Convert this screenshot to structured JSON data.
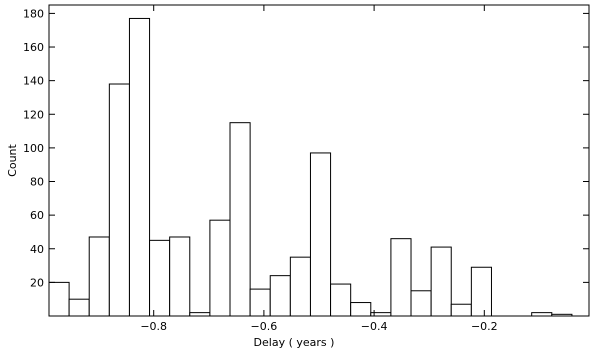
{
  "chart_data": {
    "type": "bar",
    "title": "",
    "xlabel": "Delay  (  years  )",
    "ylabel": "Count",
    "xlim": [
      -0.99,
      -0.01
    ],
    "ylim": [
      0,
      185
    ],
    "bin_width": 0.0365,
    "bins": [
      {
        "x0": -0.99,
        "value": 20
      },
      {
        "x0": -0.9535,
        "value": 10
      },
      {
        "x0": -0.917,
        "value": 47
      },
      {
        "x0": -0.8805,
        "value": 138
      },
      {
        "x0": -0.844,
        "value": 177
      },
      {
        "x0": -0.8075,
        "value": 45
      },
      {
        "x0": -0.771,
        "value": 47
      },
      {
        "x0": -0.7345,
        "value": 2
      },
      {
        "x0": -0.698,
        "value": 57
      },
      {
        "x0": -0.6615,
        "value": 115
      },
      {
        "x0": -0.625,
        "value": 16
      },
      {
        "x0": -0.5885,
        "value": 24
      },
      {
        "x0": -0.552,
        "value": 35
      },
      {
        "x0": -0.5155,
        "value": 97
      },
      {
        "x0": -0.479,
        "value": 19
      },
      {
        "x0": -0.4425,
        "value": 8
      },
      {
        "x0": -0.406,
        "value": 2
      },
      {
        "x0": -0.3695,
        "value": 46
      },
      {
        "x0": -0.333,
        "value": 15
      },
      {
        "x0": -0.2965,
        "value": 41
      },
      {
        "x0": -0.26,
        "value": 7
      },
      {
        "x0": -0.2235,
        "value": 29
      },
      {
        "x0": -0.187,
        "value": 0
      },
      {
        "x0": -0.1505,
        "value": 0
      },
      {
        "x0": -0.114,
        "value": 2
      },
      {
        "x0": -0.0775,
        "value": 1
      }
    ],
    "xticks": [
      -0.8,
      -0.6,
      -0.4,
      -0.2
    ],
    "xtick_labels": [
      "−0.8",
      "−0.6",
      "−0.4",
      "−0.2"
    ],
    "yticks": [
      20,
      40,
      60,
      80,
      100,
      120,
      140,
      160,
      180
    ],
    "ytick_labels": [
      "20",
      "40",
      "60",
      "80",
      "100",
      "120",
      "140",
      "160",
      "180"
    ],
    "grid": false,
    "legend": "none"
  }
}
